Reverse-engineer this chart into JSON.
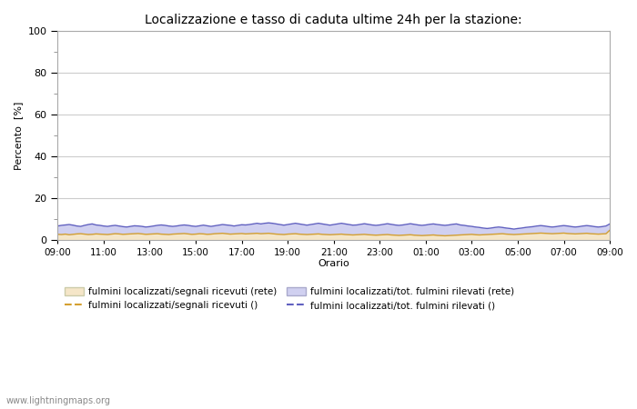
{
  "title": "Localizzazione e tasso di caduta ultime 24h per la stazione:",
  "xlabel": "Orario",
  "ylabel": "Percento  [%]",
  "ylim": [
    0,
    100
  ],
  "yticks": [
    0,
    20,
    40,
    60,
    80,
    100
  ],
  "ytick_minor": [
    10,
    30,
    50,
    70,
    90
  ],
  "xtick_labels": [
    "09:00",
    "11:00",
    "13:00",
    "15:00",
    "17:00",
    "19:00",
    "21:00",
    "23:00",
    "01:00",
    "03:00",
    "05:00",
    "07:00",
    "09:00"
  ],
  "background_color": "#ffffff",
  "plot_bg_color": "#ffffff",
  "grid_color": "#cccccc",
  "fill_color_rete_segnali": "#f5e6c8",
  "fill_color_rete_fulmini": "#d0d0f0",
  "line_color_segnali": "#d4a030",
  "line_color_fulmini": "#6060c0",
  "fill_alpha_segnali": 1.0,
  "fill_alpha_fulmini": 1.0,
  "legend_labels": [
    "fulmini localizzati/segnali ricevuti (rete)",
    "fulmini localizzati/segnali ricevuti ()",
    "fulmini localizzati/tot. fulmini rilevati (rete)",
    "fulmini localizzati/tot. fulmini rilevati ()"
  ],
  "watermark": "www.lightningmaps.org",
  "n_points": 145,
  "series_rete_segnali": [
    2.5,
    2.4,
    2.6,
    2.3,
    2.5,
    2.7,
    2.8,
    2.6,
    2.4,
    2.5,
    2.7,
    2.6,
    2.5,
    2.4,
    2.6,
    2.8,
    2.7,
    2.5,
    2.6,
    2.7,
    2.8,
    2.9,
    2.7,
    2.5,
    2.6,
    2.7,
    2.8,
    2.6,
    2.5,
    2.4,
    2.6,
    2.7,
    2.8,
    2.9,
    2.7,
    2.5,
    2.6,
    2.8,
    2.7,
    2.5,
    2.6,
    2.8,
    2.9,
    3.0,
    2.8,
    2.6,
    2.7,
    2.8,
    2.9,
    2.7,
    2.8,
    2.9,
    3.0,
    2.8,
    2.9,
    3.0,
    2.8,
    2.6,
    2.5,
    2.4,
    2.6,
    2.7,
    2.8,
    2.6,
    2.5,
    2.4,
    2.5,
    2.6,
    2.7,
    2.5,
    2.4,
    2.3,
    2.4,
    2.5,
    2.6,
    2.4,
    2.3,
    2.2,
    2.3,
    2.4,
    2.5,
    2.3,
    2.2,
    2.1,
    2.2,
    2.3,
    2.4,
    2.2,
    2.1,
    2.0,
    2.1,
    2.2,
    2.3,
    2.1,
    2.0,
    1.9,
    2.0,
    2.1,
    2.2,
    2.0,
    1.9,
    1.8,
    1.9,
    2.0,
    2.1,
    2.2,
    2.3,
    2.4,
    2.5,
    2.3,
    2.2,
    2.3,
    2.4,
    2.5,
    2.6,
    2.7,
    2.8,
    2.6,
    2.5,
    2.4,
    2.5,
    2.6,
    2.7,
    2.8,
    2.9,
    3.0,
    3.1,
    3.0,
    2.9,
    2.8,
    2.9,
    3.0,
    3.1,
    2.9,
    2.8,
    2.7,
    2.8,
    2.9,
    3.0,
    2.8,
    2.7,
    2.6,
    2.7,
    2.8,
    4.5
  ],
  "series_rete_fulmini": [
    6.5,
    6.8,
    7.0,
    7.2,
    6.9,
    6.5,
    6.3,
    6.8,
    7.2,
    7.5,
    7.0,
    6.8,
    6.5,
    6.3,
    6.6,
    6.8,
    6.5,
    6.2,
    6.0,
    6.3,
    6.6,
    6.5,
    6.3,
    6.0,
    6.2,
    6.5,
    6.8,
    7.0,
    6.8,
    6.5,
    6.3,
    6.5,
    6.8,
    7.0,
    6.8,
    6.5,
    6.3,
    6.6,
    6.9,
    6.6,
    6.3,
    6.6,
    6.9,
    7.2,
    7.0,
    6.8,
    6.5,
    6.8,
    7.1,
    7.0,
    7.2,
    7.5,
    7.8,
    7.5,
    7.8,
    8.0,
    7.8,
    7.5,
    7.2,
    6.9,
    7.2,
    7.5,
    7.8,
    7.5,
    7.2,
    6.9,
    7.2,
    7.5,
    7.8,
    7.5,
    7.2,
    6.9,
    7.2,
    7.5,
    7.8,
    7.5,
    7.2,
    6.9,
    7.0,
    7.3,
    7.6,
    7.3,
    7.0,
    6.8,
    7.0,
    7.3,
    7.6,
    7.3,
    7.0,
    6.8,
    7.0,
    7.3,
    7.6,
    7.3,
    7.0,
    6.8,
    7.0,
    7.3,
    7.5,
    7.2,
    7.0,
    6.8,
    7.0,
    7.3,
    7.5,
    7.0,
    6.8,
    6.5,
    6.3,
    6.0,
    5.8,
    5.5,
    5.3,
    5.5,
    5.8,
    6.0,
    5.8,
    5.5,
    5.3,
    5.0,
    5.3,
    5.5,
    5.8,
    6.0,
    6.2,
    6.5,
    6.7,
    6.5,
    6.2,
    6.0,
    6.2,
    6.5,
    6.7,
    6.5,
    6.2,
    6.0,
    6.2,
    6.5,
    6.7,
    6.5,
    6.2,
    6.0,
    6.2,
    6.5,
    7.5
  ]
}
